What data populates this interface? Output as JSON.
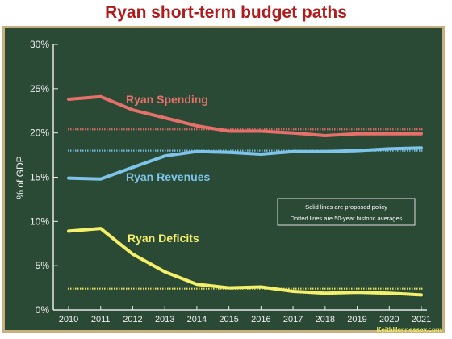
{
  "chart_data": {
    "type": "line",
    "title": "Ryan short-term budget paths",
    "ylabel": "% of GDP",
    "xlabel": "",
    "ylim": [
      0,
      30
    ],
    "yticks": [
      "0%",
      "5%",
      "10%",
      "15%",
      "20%",
      "25%",
      "30%"
    ],
    "yticks_values": [
      0,
      5,
      10,
      15,
      20,
      25,
      30
    ],
    "categories": [
      "2010",
      "2011",
      "2012",
      "2013",
      "2014",
      "2015",
      "2016",
      "2017",
      "2018",
      "2019",
      "2020",
      "2021"
    ],
    "series": [
      {
        "name": "Ryan Spending",
        "color": "#e8706a",
        "values": [
          23.8,
          24.1,
          22.6,
          21.7,
          20.8,
          20.2,
          20.2,
          20.0,
          19.7,
          19.9,
          19.9,
          19.9
        ],
        "historic_average": 20.4
      },
      {
        "name": "Ryan Revenues",
        "color": "#7ec4ea",
        "values": [
          14.9,
          14.8,
          16.1,
          17.4,
          17.9,
          17.8,
          17.6,
          17.9,
          17.9,
          18.0,
          18.2,
          18.3
        ],
        "historic_average": 18.0
      },
      {
        "name": "Ryan Deficits",
        "color": "#f5f06a",
        "values": [
          8.9,
          9.2,
          6.3,
          4.3,
          2.9,
          2.5,
          2.6,
          2.1,
          1.9,
          2.0,
          1.9,
          1.7
        ],
        "historic_average": 2.4
      }
    ],
    "legend_note": {
      "line1": "Solid lines are proposed policy",
      "line2": "Dotted lines are 50-year historic averages",
      "placement": "right-middle"
    },
    "credit": "KeithHennessey.com",
    "grid": false,
    "background": "#2a4a36"
  }
}
